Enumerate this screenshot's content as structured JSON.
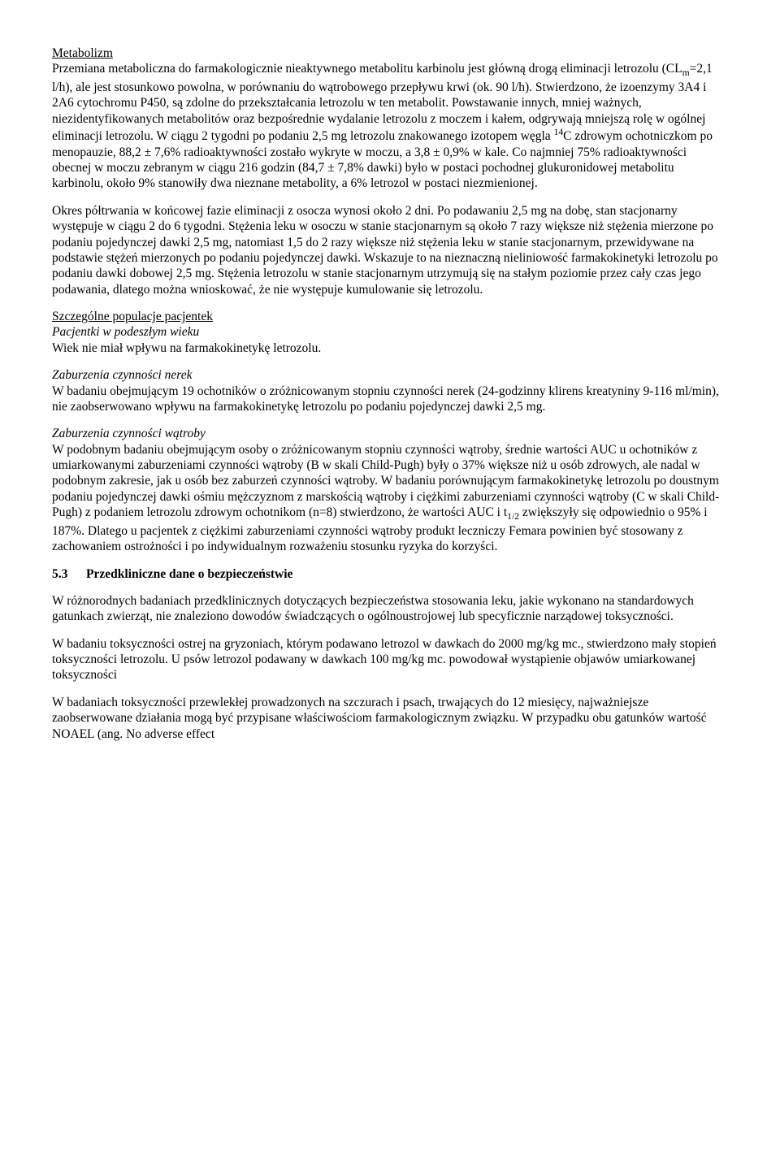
{
  "p1_head": "Metabolizm",
  "p1": "Przemiana metaboliczna do farmakologicznie nieaktywnego metabolitu karbinolu jest główną drogą eliminacji letrozolu (CL",
  "p1_sub": "m",
  "p1b": "=2,1 l/h), ale jest stosunkowo powolna, w porównaniu do wątrobowego przepływu krwi (ok. 90 l/h). Stwierdzono, że izoenzymy 3A4 i 2A6 cytochromu P450, są zdolne do przekształcania letrozolu w ten metabolit. Powstawanie innych, mniej ważnych, niezidentyfikowanych metabolitów oraz bezpośrednie wydalanie letrozolu z moczem i kałem, odgrywają mniejszą rolę w ogólnej eliminacji letrozolu. W ciągu 2 tygodni po podaniu 2,5 mg letrozolu znakowanego izotopem węgla ",
  "p1_sup": "14",
  "p1c": "C zdrowym ochotniczkom po menopauzie, 88,2 ± 7,6% radioaktywności zostało wykryte w moczu, a 3,8 ± 0,9% w kale. Co najmniej 75% radioaktywności obecnej w moczu zebranym w ciągu 216 godzin (84,7 ± 7,8% dawki) było w postaci pochodnej glukuronidowej metabolitu karbinolu, około 9% stanowiły dwa nieznane metabolity, a 6% letrozol w postaci niezmienionej.",
  "p2": "Okres półtrwania w końcowej fazie eliminacji z osocza wynosi około 2 dni. Po podawaniu 2,5 mg na dobę, stan stacjonarny występuje w ciągu 2 do 6 tygodni. Stężenia leku w osoczu w stanie stacjonarnym są około 7 razy większe niż stężenia mierzone po podaniu pojedynczej dawki 2,5 mg, natomiast 1,5 do 2 razy większe niż stężenia leku w stanie stacjonarnym, przewidywane na podstawie stężeń mierzonych po podaniu pojedynczej dawki. Wskazuje to na nieznaczną nieliniowość farmakokinetyki letrozolu po podaniu dawki dobowej 2,5 mg. Stężenia letrozolu w stanie stacjonarnym utrzymują się na stałym poziomie przez cały czas jego podawania, dlatego można wnioskować, że nie występuje kumulowanie się letrozolu.",
  "p3a": "Szczególne populacje pacjentek",
  "p3b": "Pacjentki w podeszłym wieku",
  "p3c": "Wiek nie miał wpływu na farmakokinetykę letrozolu.",
  "p4a": "Zaburzenia czynności nerek",
  "p4b": "W badaniu obejmującym 19 ochotników o zróżnicowanym stopniu czynności nerek (24-godzinny klirens kreatyniny 9-116 ml/min), nie zaobserwowano wpływu na farmakokinetykę letrozolu po podaniu pojedynczej dawki 2,5 mg.",
  "p5a": "Zaburzenia czynności wątroby",
  "p5b": "W podobnym badaniu obejmującym osoby o zróżnicowanym stopniu czynności wątroby, średnie wartości AUC u ochotników z umiarkowanymi zaburzeniami czynności wątroby (B w skali Child-Pugh) były o 37% większe niż u osób zdrowych, ale nadal w podobnym zakresie, jak u osób bez zaburzeń czynności wątroby. W badaniu porównującym farmakokinetykę letrozolu po doustnym podaniu pojedynczej dawki ośmiu mężczyznom z marskością wątroby i ciężkimi zaburzeniami czynności wątroby (C w skali Child-Pugh) z podaniem letrozolu zdrowym ochotnikom (n=8) stwierdzono, że wartości AUC i t",
  "p5b_sub": "1/2",
  "p5b2": " zwiększyły się odpowiednio o 95% i 187%. Dlatego u pacjentek z ciężkimi zaburzeniami czynności wątroby produkt leczniczy Femara powinien być stosowany z zachowaniem ostrożności i po indywidualnym rozważeniu stosunku ryzyka do korzyści.",
  "s53_num": "5.3",
  "s53_title": "Przedkliniczne dane o bezpieczeństwie",
  "p6": "W różnorodnych badaniach przedklinicznych dotyczących bezpieczeństwa stosowania leku, jakie wykonano na standardowych gatunkach zwierząt, nie znaleziono dowodów świadczących o ogólnoustrojowej lub specyficznie narządowej toksyczności.",
  "p7": "W badaniu toksyczności ostrej na gryzoniach, którym podawano letrozol w dawkach do 2000 mg/kg mc., stwierdzono mały stopień toksyczności letrozolu. U psów letrozol podawany w dawkach 100 mg/kg mc. powodował wystąpienie objawów umiarkowanej toksyczności",
  "p8": "W badaniach toksyczności przewlekłej prowadzonych na szczurach i psach, trwających do 12 miesięcy, najważniejsze zaobserwowane działania mogą być przypisane właściwościom farmakologicznym związku. W przypadku obu gatunków wartość NOAEL (ang. No adverse effect"
}
